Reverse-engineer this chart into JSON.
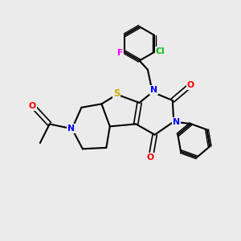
{
  "background_color": "#ebebeb",
  "bond_color": "#000000",
  "atom_colors": {
    "S": "#ccaa00",
    "N": "#0000ff",
    "O": "#ff0000",
    "F": "#ff00ff",
    "Cl": "#00bb00",
    "C": "#000000"
  },
  "figsize": [
    3.0,
    3.0
  ],
  "dpi": 100
}
